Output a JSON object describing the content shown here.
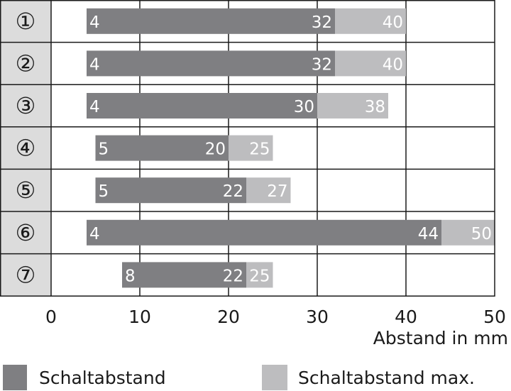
{
  "chart_data": {
    "type": "bar",
    "orientation": "horizontal",
    "stacked_ranges": true,
    "categories": [
      "①",
      "②",
      "③",
      "④",
      "⑤",
      "⑥",
      "⑦"
    ],
    "series": [
      {
        "name": "Schaltabstand",
        "start": [
          4,
          4,
          4,
          5,
          5,
          4,
          8
        ],
        "end": [
          32,
          32,
          30,
          20,
          22,
          44,
          22
        ]
      },
      {
        "name": "Schaltabstand max.",
        "start": [
          32,
          32,
          30,
          20,
          22,
          44,
          22
        ],
        "end": [
          40,
          40,
          38,
          25,
          27,
          50,
          25
        ]
      }
    ],
    "xlim": [
      0,
      50
    ],
    "xticks": [
      0,
      10,
      20,
      30,
      40,
      50
    ],
    "xlabel": "Abstand in mm",
    "grid": true,
    "legend": "bottom",
    "colors": {
      "schaltabstand": "#7f7f82",
      "schaltabstand_max": "#bdbdbf",
      "category_cell": "#dcdcdc",
      "axis": "#1a1a1a",
      "bar_text": "#ffffff"
    }
  }
}
